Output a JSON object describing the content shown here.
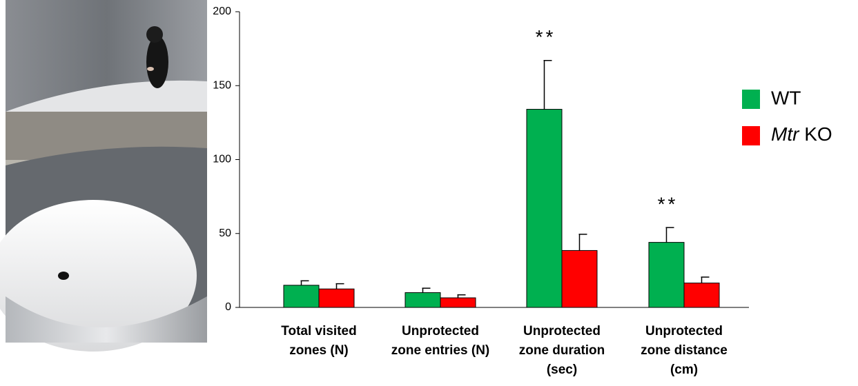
{
  "chart_data": {
    "type": "bar",
    "categories": [
      [
        "Total visited",
        "zones (N)"
      ],
      [
        "Unprotected",
        "zone entries (N)"
      ],
      [
        "Unprotected",
        "zone duration",
        "(sec)"
      ],
      [
        "Unprotected",
        "zone distance",
        "(cm)"
      ]
    ],
    "series": [
      {
        "name": "WT",
        "color": "#00b050",
        "values": [
          15,
          10,
          134,
          44
        ],
        "errors": [
          3,
          3,
          33,
          10
        ]
      },
      {
        "name": "Mtr KO",
        "color": "#ff0000",
        "values": [
          12.5,
          6.5,
          38.5,
          16.5
        ],
        "errors": [
          3.5,
          2,
          11,
          4
        ]
      }
    ],
    "annotations": [
      {
        "text": "**",
        "category": 2,
        "series": 0
      },
      {
        "text": "**",
        "category": 3,
        "series": 0
      }
    ],
    "ylim": [
      0,
      200
    ],
    "yticks": [
      0,
      50,
      100,
      150,
      200
    ],
    "grid": false,
    "legend": "right"
  }
}
